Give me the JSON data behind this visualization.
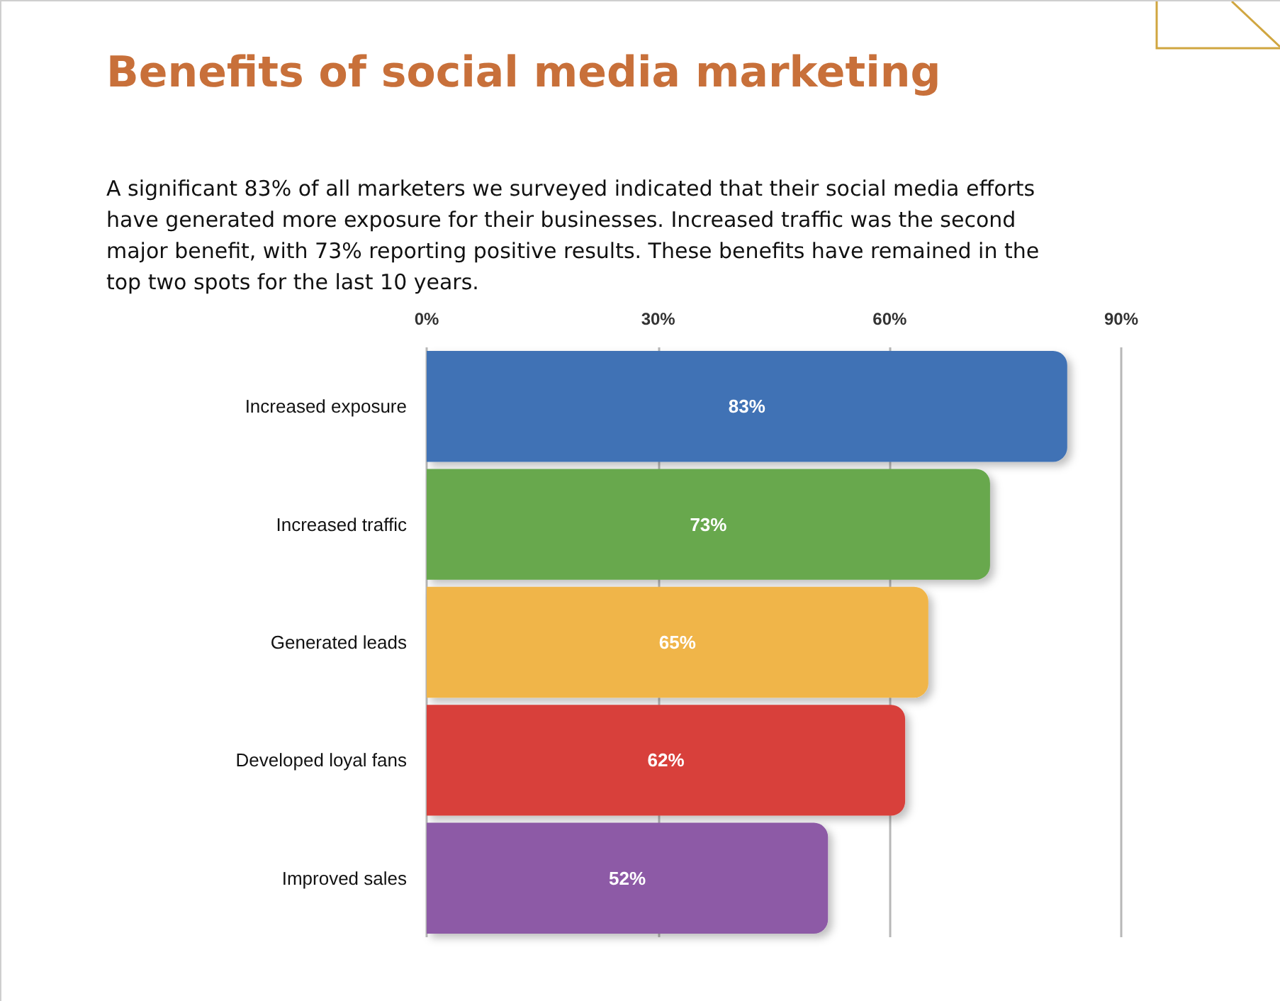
{
  "chart_data": {
    "type": "bar",
    "orientation": "horizontal",
    "title": "Benefits of social media marketing",
    "subtitle": "A significant 83% of all marketers we surveyed indicated that their social media efforts have generated more exposure for their businesses. Increased traffic was the second major benefit, with 73% reporting positive results. These benefits have remained in the top two spots for the last 10 years.",
    "categories": [
      "Increased exposure",
      "Increased traffic",
      "Generated leads",
      "Developed loyal fans",
      "Improved sales"
    ],
    "values": [
      83,
      73,
      65,
      62,
      52
    ],
    "colors": [
      "#3f72b5",
      "#67a84e",
      "#f0b548",
      "#d8403b",
      "#8d5aa6"
    ],
    "value_labels": [
      "83%",
      "73%",
      "65%",
      "62%",
      "52%"
    ],
    "xlim": [
      0,
      90
    ],
    "xticks": [
      {
        "value": 0,
        "label": "0%"
      },
      {
        "value": 30,
        "label": "30%"
      },
      {
        "value": 60,
        "label": "60%"
      },
      {
        "value": 90,
        "label": "90%"
      }
    ],
    "grid": "x"
  }
}
